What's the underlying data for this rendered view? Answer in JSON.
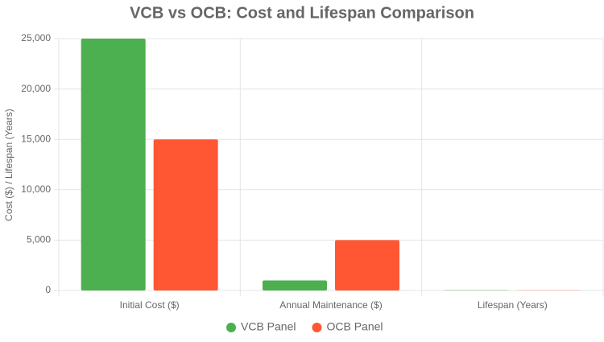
{
  "chart_data": {
    "type": "bar",
    "title": "VCB vs OCB: Cost and Lifespan Comparison",
    "y_label": "Cost ($) / Lifespan (Years)",
    "categories": [
      "Initial Cost ($)",
      "Annual Maintenance ($)",
      "Lifespan (Years)"
    ],
    "series": [
      {
        "name": "VCB Panel",
        "color": "#4caf50",
        "values": [
          25000,
          1000,
          25
        ]
      },
      {
        "name": "OCB Panel",
        "color": "#ff5733",
        "values": [
          15000,
          5000,
          15
        ]
      }
    ],
    "ylim": [
      0,
      25000
    ],
    "yticks": [
      0,
      {
        "value": 5000,
        "label": "5,000"
      },
      {
        "value": 10000,
        "label": "10,000"
      },
      {
        "value": 15000,
        "label": "15,000"
      },
      {
        "value": 20000,
        "label": "20,000"
      },
      {
        "value": 25000,
        "label": "25,000"
      }
    ],
    "grid": true,
    "legend": "bottom"
  }
}
